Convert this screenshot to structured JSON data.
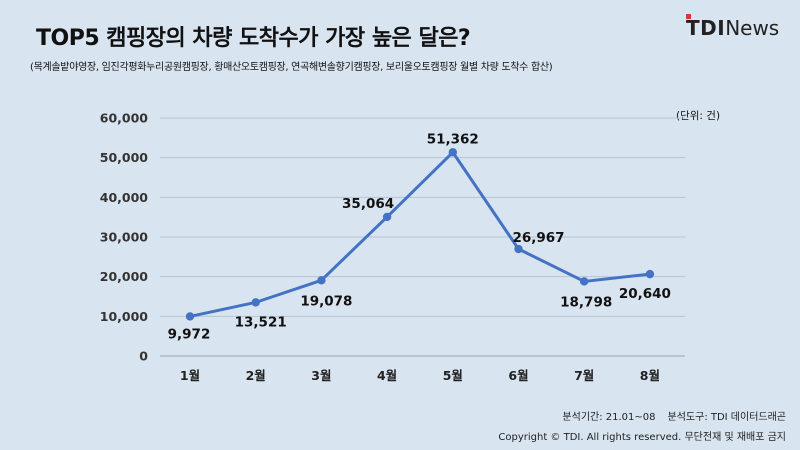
{
  "header": {
    "title": "TOP5 캠핑장의 차량 도착수가 가장 높은 달은?",
    "subtitle": "(목계솔밭야영장, 임진각평화누리공원캠핑장, 황매산오토캠핑장, 연곡해변솔향기캠핑장, 보리울오토캠핑장 월별 차량 도착수 합산)"
  },
  "brand": {
    "bold": "TDI",
    "light": "News",
    "dot_color": "#d63a2c"
  },
  "unit_label": "(단위: 건)",
  "chart_data": {
    "type": "line",
    "categories": [
      "1월",
      "2월",
      "3월",
      "4월",
      "5월",
      "6월",
      "7월",
      "8월"
    ],
    "series": [
      {
        "values": [
          9972,
          13521,
          19078,
          35064,
          51362,
          26967,
          18798,
          20640
        ]
      }
    ],
    "data_labels": [
      "9,972",
      "13,521",
      "19,078",
      "35,064",
      "51,362",
      "26,967",
      "18,798",
      "20,640"
    ],
    "yticks": [
      0,
      10000,
      20000,
      30000,
      40000,
      50000,
      60000
    ],
    "ytick_labels": [
      "0",
      "10,000",
      "20,000",
      "30,000",
      "40,000",
      "50,000",
      "60,000"
    ],
    "ylim": [
      0,
      60000
    ],
    "grid": true,
    "line_color": "#4472c4"
  },
  "footer": {
    "period": "분석기간: 21.01~08",
    "tool": "분석도구: TDI 데이터드래곤",
    "copyright": "Copyright © TDI. All rights reserved. 무단전재 및 재배포 금지"
  }
}
